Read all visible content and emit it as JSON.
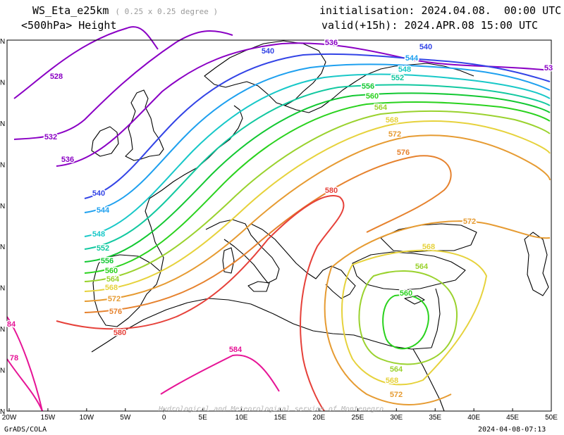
{
  "header": {
    "model": "WS_Eta_e25km",
    "resolution": "( 0.25 x 0.25 degree )",
    "field": "<500hPa> Height",
    "init_label": "initialisation:",
    "init_value": "2024.04.08.  00:00 UTC",
    "valid_label": "valid(+15h):",
    "valid_value": "2024.APR.08 15:00 UTC"
  },
  "footer": {
    "software": "GrADS/COLA",
    "watermark": "Hydrological and Meteorological service of Montenegro",
    "timestamp": "2024-04-08-07:13"
  },
  "map": {
    "lon_ticks": [
      "20W",
      "15W",
      "10W",
      "5W",
      "0",
      "5E",
      "10E",
      "15E",
      "20E",
      "25E",
      "30E",
      "35E",
      "40E",
      "45E",
      "50E"
    ],
    "lat_ticks": [
      "N",
      "N",
      "N",
      "N",
      "N",
      "N",
      "N",
      "N",
      "N",
      "N"
    ],
    "lon_range": [
      -20,
      50
    ],
    "contour_colors": {
      "528": "#8a00c4",
      "532": "#8a00c4",
      "536": "#8a00c4",
      "540": "#3344e6",
      "544": "#1ea0ef",
      "548": "#18c8c8",
      "552": "#12c8a0",
      "556": "#12c832",
      "560": "#2ad21e",
      "564": "#9ad22e",
      "568": "#e6d23c",
      "572": "#e69b32",
      "576": "#e6822e",
      "580": "#e6413a",
      "584": "#e61496"
    },
    "contour_labels": [
      {
        "text": "528",
        "color": "#8a00c4"
      },
      {
        "text": "532",
        "color": "#8a00c4"
      },
      {
        "text": "536",
        "color": "#8a00c4"
      },
      {
        "text": "536",
        "color": "#8a00c4"
      },
      {
        "text": "53",
        "color": "#8a00c4"
      },
      {
        "text": "540",
        "color": "#3344e6"
      },
      {
        "text": "540",
        "color": "#3344e6"
      },
      {
        "text": "540",
        "color": "#3344e6"
      },
      {
        "text": "544",
        "color": "#1ea0ef"
      },
      {
        "text": "544",
        "color": "#1ea0ef"
      },
      {
        "text": "548",
        "color": "#18c8c8"
      },
      {
        "text": "548",
        "color": "#18c8c8"
      },
      {
        "text": "552",
        "color": "#12c8a0"
      },
      {
        "text": "552",
        "color": "#12c8a0"
      },
      {
        "text": "556",
        "color": "#12c832"
      },
      {
        "text": "556",
        "color": "#12c832"
      },
      {
        "text": "560",
        "color": "#2ad21e"
      },
      {
        "text": "560",
        "color": "#2ad21e"
      },
      {
        "text": "560",
        "color": "#2ad21e"
      },
      {
        "text": "564",
        "color": "#9ad22e"
      },
      {
        "text": "564",
        "color": "#9ad22e"
      },
      {
        "text": "564",
        "color": "#9ad22e"
      },
      {
        "text": "564",
        "color": "#9ad22e"
      },
      {
        "text": "568",
        "color": "#e6d23c"
      },
      {
        "text": "568",
        "color": "#e6d23c"
      },
      {
        "text": "568",
        "color": "#e6d23c"
      },
      {
        "text": "568",
        "color": "#e6d23c"
      },
      {
        "text": "572",
        "color": "#e69b32"
      },
      {
        "text": "572",
        "color": "#e69b32"
      },
      {
        "text": "572",
        "color": "#e69b32"
      },
      {
        "text": "572",
        "color": "#e69b32"
      },
      {
        "text": "576",
        "color": "#e6822e"
      },
      {
        "text": "576",
        "color": "#e6822e"
      },
      {
        "text": "580",
        "color": "#e6413a"
      },
      {
        "text": "580",
        "color": "#e6413a"
      },
      {
        "text": "584",
        "color": "#e61496"
      },
      {
        "text": "84",
        "color": "#e61496"
      },
      {
        "text": "78",
        "color": "#e61496"
      }
    ]
  }
}
